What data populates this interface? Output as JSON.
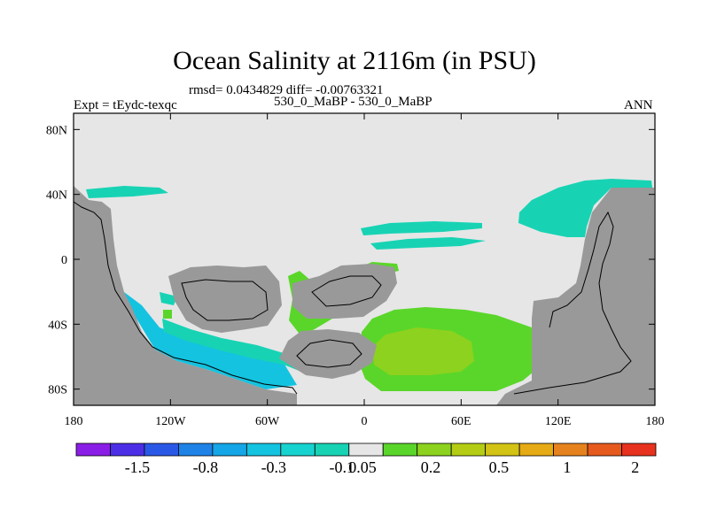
{
  "title": "Ocean Salinity at 2116m (in PSU)",
  "stats": "rmsd= 0.0434829 diff= -0.00763321",
  "experiment": "Expt = tEydc-texqc",
  "comparison": "530_0_MaBP - 530_0_MaBP",
  "season": "ANN",
  "axes": {
    "x_ticks": [
      "180",
      "120W",
      "60W",
      "0",
      "60E",
      "120E",
      "180"
    ],
    "y_ticks": [
      "80N",
      "40N",
      "0",
      "40S",
      "80S"
    ]
  },
  "colorbar": {
    "colors": [
      "#8a1ee6",
      "#4b2ee6",
      "#2a58e6",
      "#1e82e6",
      "#14a6e6",
      "#14c3e0",
      "#17d3cf",
      "#17d3b4",
      "#e6e6e6",
      "#5ad62a",
      "#8cd21e",
      "#b4cd14",
      "#d2c314",
      "#e6aa14",
      "#e6821e",
      "#e65a1e",
      "#e6321e"
    ],
    "labels": [
      "-1.5",
      "-0.8",
      "-0.3",
      "-0.1",
      "0.05",
      "0.2",
      "0.5",
      "1",
      "2"
    ]
  },
  "map_colors": {
    "background": "#e6e6e6",
    "land": "#999999",
    "band_teal": "#17d3b4",
    "band_cyan": "#14c3e0",
    "band_green": "#5ad62a",
    "band_lime": "#8cd21e"
  }
}
